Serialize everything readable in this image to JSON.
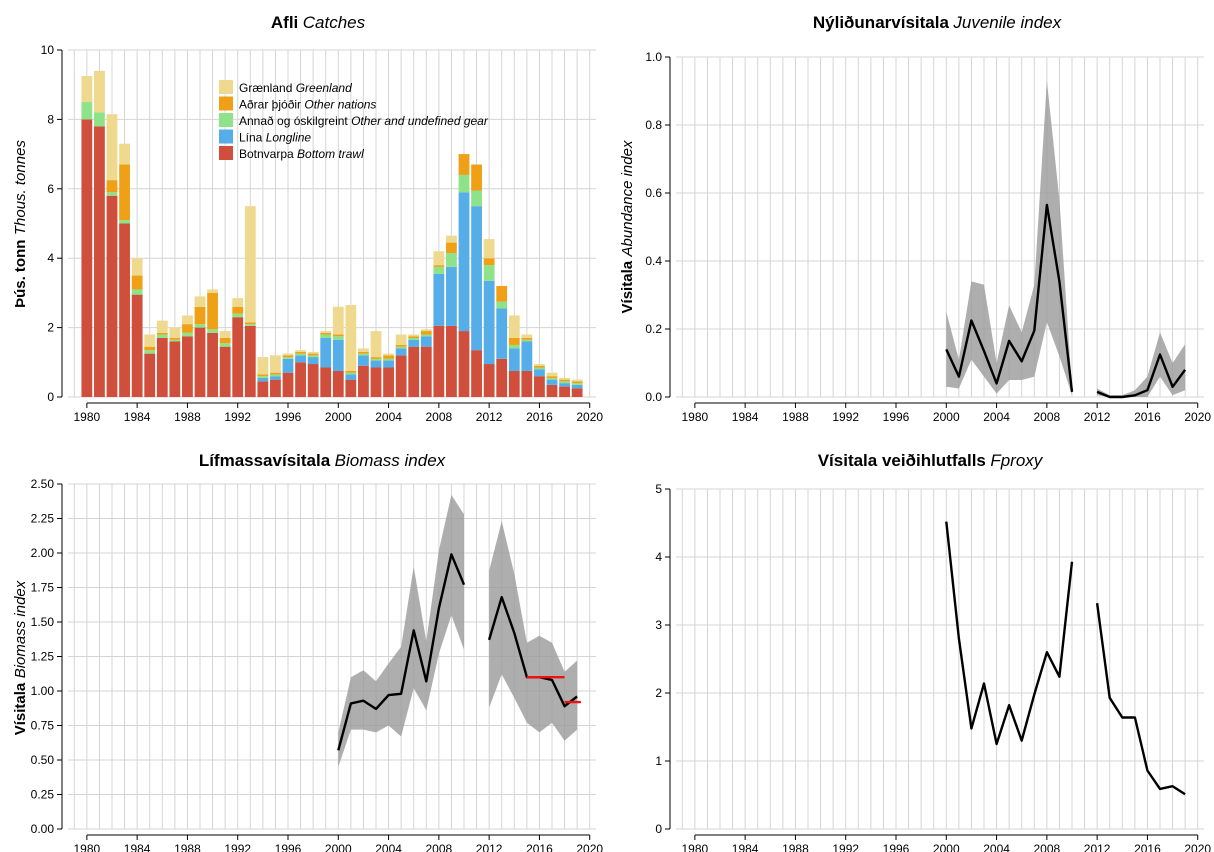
{
  "chart_data": [
    {
      "type": "bar",
      "stacked": true,
      "title": "Afli",
      "title_en": "Catches",
      "ylabel": "Þús. tonn",
      "ylabel_en": "Thous. tonnes",
      "xlim": [
        1978.5,
        2020.5
      ],
      "ylim": [
        0,
        10
      ],
      "xticks": [
        1980,
        1984,
        1988,
        1992,
        1996,
        2000,
        2004,
        2008,
        2012,
        2016,
        2020
      ],
      "yticks": [
        0,
        2,
        4,
        6,
        8,
        10
      ],
      "grid": true,
      "legend_position": "top-center",
      "x": [
        1980,
        1981,
        1982,
        1983,
        1984,
        1985,
        1986,
        1987,
        1988,
        1989,
        1990,
        1991,
        1992,
        1993,
        1994,
        1995,
        1996,
        1997,
        1998,
        1999,
        2000,
        2001,
        2002,
        2003,
        2004,
        2005,
        2006,
        2007,
        2008,
        2009,
        2010,
        2011,
        2012,
        2013,
        2014,
        2015,
        2016,
        2017,
        2018,
        2019
      ],
      "series": [
        {
          "name": "Botnvarpa",
          "name_en": "Bottom trawl",
          "color": "#cf4f3c",
          "values": [
            8.0,
            7.8,
            5.8,
            5.0,
            2.95,
            1.25,
            1.7,
            1.6,
            1.75,
            2.0,
            1.85,
            1.45,
            2.3,
            2.05,
            0.45,
            0.5,
            0.7,
            1.0,
            0.95,
            0.85,
            0.75,
            0.5,
            0.9,
            0.85,
            0.85,
            1.2,
            1.45,
            1.45,
            2.05,
            2.05,
            1.9,
            1.35,
            0.95,
            1.1,
            0.75,
            0.75,
            0.6,
            0.35,
            0.3,
            0.25
          ]
        },
        {
          "name": "Lína",
          "name_en": "Longline",
          "color": "#56aee8",
          "values": [
            0,
            0,
            0,
            0,
            0,
            0,
            0,
            0,
            0,
            0,
            0,
            0,
            0,
            0,
            0.1,
            0.1,
            0.4,
            0.2,
            0.2,
            0.85,
            0.9,
            0.15,
            0.3,
            0.2,
            0.2,
            0.2,
            0.2,
            0.3,
            1.5,
            1.7,
            4.0,
            4.15,
            2.4,
            1.45,
            0.65,
            0.85,
            0.2,
            0.15,
            0.1,
            0.1
          ]
        },
        {
          "name": "Annað og óskilgreint",
          "name_en": "Other and undefined gear",
          "color": "#8ee38a",
          "values": [
            0.5,
            0.4,
            0.1,
            0.1,
            0.15,
            0.1,
            0.1,
            0.05,
            0.1,
            0.1,
            0.1,
            0.1,
            0.1,
            0.05,
            0.05,
            0.05,
            0.05,
            0.05,
            0.05,
            0.1,
            0.1,
            0.05,
            0.05,
            0.05,
            0.05,
            0.05,
            0.05,
            0.05,
            0.2,
            0.4,
            0.5,
            0.45,
            0.45,
            0.2,
            0.1,
            0.05,
            0.05,
            0.05,
            0.05,
            0.05
          ]
        },
        {
          "name": "Aðrar þjóðir",
          "name_en": "Other nations",
          "color": "#f0a017",
          "values": [
            0,
            0,
            0.35,
            1.6,
            0.4,
            0.1,
            0.05,
            0.05,
            0.25,
            0.5,
            1.05,
            0.15,
            0.2,
            0.05,
            0.05,
            0.05,
            0.05,
            0.05,
            0.05,
            0.05,
            0.05,
            0.05,
            0.05,
            0.05,
            0.1,
            0.05,
            0.05,
            0.1,
            0.05,
            0.3,
            0.6,
            0.75,
            0.2,
            0.45,
            0.2,
            0.05,
            0.05,
            0.05,
            0.05,
            0.05
          ]
        },
        {
          "name": "Grænland",
          "name_en": "Greenland",
          "color": "#efd98e",
          "values": [
            0.75,
            1.2,
            1.9,
            0.6,
            0.5,
            0.35,
            0.35,
            0.3,
            0.25,
            0.3,
            0.1,
            0.2,
            0.25,
            3.35,
            0.5,
            0.5,
            0.05,
            0.05,
            0.05,
            0.05,
            0.8,
            1.9,
            0.1,
            0.75,
            0.05,
            0.3,
            0.05,
            0.05,
            0.4,
            0.2,
            0.0,
            0.0,
            0.55,
            0.0,
            0.65,
            0.1,
            0.05,
            0.1,
            0.05,
            0.05
          ]
        }
      ]
    },
    {
      "type": "line",
      "title": "Nýliðunarvísitala",
      "title_en": "Juvenile index",
      "ylabel": "Vísitala",
      "ylabel_en": "Abundance index",
      "xlim": [
        1978.5,
        2020.5
      ],
      "ylim": [
        0,
        1.0
      ],
      "xticks": [
        1980,
        1984,
        1988,
        1992,
        1996,
        2000,
        2004,
        2008,
        2012,
        2016,
        2020
      ],
      "yticks": [
        0.0,
        0.2,
        0.4,
        0.6,
        0.8,
        1.0
      ],
      "ytick_labels": [
        "0.0",
        "0.2",
        "0.4",
        "0.6",
        "0.8",
        "1.0"
      ],
      "grid": true,
      "series": [
        {
          "x": [
            2000,
            2001,
            2002,
            2003,
            2004,
            2005,
            2006,
            2007,
            2008,
            2009,
            2010
          ],
          "y": [
            0.14,
            0.06,
            0.225,
            0.135,
            0.04,
            0.165,
            0.105,
            0.195,
            0.565,
            0.34,
            0.015
          ],
          "lower": [
            0.03,
            0.025,
            0.11,
            0.06,
            0.01,
            0.05,
            0.05,
            0.06,
            0.22,
            0.12,
            0.005
          ],
          "upper": [
            0.25,
            0.11,
            0.34,
            0.33,
            0.1,
            0.27,
            0.19,
            0.33,
            0.93,
            0.58,
            0.025
          ]
        },
        {
          "x": [
            2012,
            2013,
            2014,
            2015,
            2016,
            2017,
            2018,
            2019
          ],
          "y": [
            0.015,
            0.0,
            0.0,
            0.005,
            0.02,
            0.125,
            0.03,
            0.08
          ],
          "lower": [
            0.005,
            0.0,
            0.0,
            0.0,
            0.0,
            0.06,
            0.005,
            0.02
          ],
          "upper": [
            0.025,
            0.005,
            0.005,
            0.02,
            0.06,
            0.19,
            0.1,
            0.155
          ]
        }
      ]
    },
    {
      "type": "line",
      "title": "Lífmassavísitala",
      "title_en": "Biomass index",
      "ylabel": "Vísitala",
      "ylabel_en": "Biomass index",
      "xlim": [
        1978.5,
        2020.5
      ],
      "ylim": [
        0,
        2.5
      ],
      "xticks": [
        1980,
        1984,
        1988,
        1992,
        1996,
        2000,
        2004,
        2008,
        2012,
        2016,
        2020
      ],
      "yticks": [
        0.0,
        0.25,
        0.5,
        0.75,
        1.0,
        1.25,
        1.5,
        1.75,
        2.0,
        2.25,
        2.5
      ],
      "ytick_labels": [
        "0.00",
        "0.25",
        "0.50",
        "0.75",
        "1.00",
        "1.25",
        "1.50",
        "1.75",
        "2.00",
        "2.25",
        "2.50"
      ],
      "grid": true,
      "series": [
        {
          "x": [
            2000,
            2001,
            2002,
            2003,
            2004,
            2005,
            2006,
            2007,
            2008,
            2009,
            2010
          ],
          "y": [
            0.57,
            0.91,
            0.93,
            0.87,
            0.97,
            0.98,
            1.44,
            1.07,
            1.6,
            1.99,
            1.77
          ],
          "lower": [
            0.45,
            0.72,
            0.72,
            0.7,
            0.75,
            0.67,
            1.02,
            0.86,
            1.27,
            1.55,
            1.3
          ],
          "upper": [
            0.7,
            1.1,
            1.15,
            1.07,
            1.2,
            1.32,
            1.9,
            1.36,
            2.02,
            2.42,
            2.28
          ]
        },
        {
          "x": [
            2012,
            2013,
            2014,
            2015,
            2016,
            2017,
            2018,
            2019
          ],
          "y": [
            1.37,
            1.68,
            1.42,
            1.1,
            1.1,
            1.08,
            0.89,
            0.96
          ],
          "lower": [
            0.88,
            1.12,
            0.95,
            0.77,
            0.7,
            0.77,
            0.64,
            0.72
          ],
          "upper": [
            1.87,
            2.23,
            1.85,
            1.35,
            1.4,
            1.35,
            1.14,
            1.22
          ]
        }
      ],
      "reference_segments": [
        {
          "x": [
            2015,
            2018
          ],
          "y": 1.1,
          "color": "#ee1111"
        },
        {
          "x": [
            2018,
            2019.3
          ],
          "y": 0.92,
          "color": "#ee1111"
        }
      ]
    },
    {
      "type": "line",
      "title": "Vísitala veiðihlutfalls",
      "title_en": "Fproxy",
      "xlim": [
        1978.5,
        2020.5
      ],
      "ylim": [
        0,
        5
      ],
      "xticks": [
        1980,
        1984,
        1988,
        1992,
        1996,
        2000,
        2004,
        2008,
        2012,
        2016,
        2020
      ],
      "yticks": [
        0,
        1,
        2,
        3,
        4,
        5
      ],
      "grid": true,
      "series": [
        {
          "x": [
            2000,
            2001,
            2002,
            2003,
            2004,
            2005,
            2006,
            2007,
            2008,
            2009,
            2010
          ],
          "y": [
            4.52,
            2.8,
            1.48,
            2.14,
            1.25,
            1.82,
            1.3,
            1.98,
            2.6,
            2.24,
            3.93
          ]
        },
        {
          "x": [
            2012,
            2013,
            2014,
            2015,
            2016,
            2017,
            2018,
            2019
          ],
          "y": [
            3.32,
            1.93,
            1.64,
            1.64,
            0.86,
            0.59,
            0.63,
            0.51
          ]
        }
      ]
    }
  ]
}
